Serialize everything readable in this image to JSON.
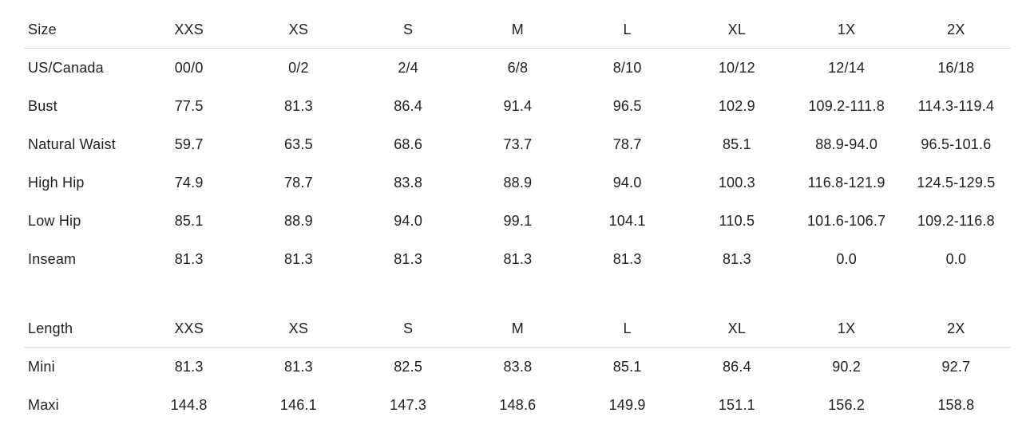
{
  "page": {
    "background_color": "#ffffff",
    "text_color": "#1f1f1f",
    "divider_color": "#dcdcdc"
  },
  "size_table": {
    "header": {
      "label": "Size",
      "columns": [
        "XXS",
        "XS",
        "S",
        "M",
        "L",
        "XL",
        "1X",
        "2X"
      ]
    },
    "rows": [
      {
        "label": "US/Canada",
        "values": [
          "00/0",
          "0/2",
          "2/4",
          "6/8",
          "8/10",
          "10/12",
          "12/14",
          "16/18"
        ]
      },
      {
        "label": "Bust",
        "values": [
          "77.5",
          "81.3",
          "86.4",
          "91.4",
          "96.5",
          "102.9",
          "109.2-111.8",
          "114.3-119.4"
        ]
      },
      {
        "label": "Natural Waist",
        "values": [
          "59.7",
          "63.5",
          "68.6",
          "73.7",
          "78.7",
          "85.1",
          "88.9-94.0",
          "96.5-101.6"
        ]
      },
      {
        "label": "High Hip",
        "values": [
          "74.9",
          "78.7",
          "83.8",
          "88.9",
          "94.0",
          "100.3",
          "116.8-121.9",
          "124.5-129.5"
        ]
      },
      {
        "label": "Low Hip",
        "values": [
          "85.1",
          "88.9",
          "94.0",
          "99.1",
          "104.1",
          "110.5",
          "101.6-106.7",
          "109.2-116.8"
        ]
      },
      {
        "label": "Inseam",
        "values": [
          "81.3",
          "81.3",
          "81.3",
          "81.3",
          "81.3",
          "81.3",
          "0.0",
          "0.0"
        ]
      }
    ]
  },
  "length_table": {
    "header": {
      "label": "Length",
      "columns": [
        "XXS",
        "XS",
        "S",
        "M",
        "L",
        "XL",
        "1X",
        "2X"
      ]
    },
    "rows": [
      {
        "label": "Mini",
        "values": [
          "81.3",
          "81.3",
          "82.5",
          "83.8",
          "85.1",
          "86.4",
          "90.2",
          "92.7"
        ]
      },
      {
        "label": "Maxi",
        "values": [
          "144.8",
          "146.1",
          "147.3",
          "148.6",
          "149.9",
          "151.1",
          "156.2",
          "158.8"
        ]
      }
    ]
  }
}
